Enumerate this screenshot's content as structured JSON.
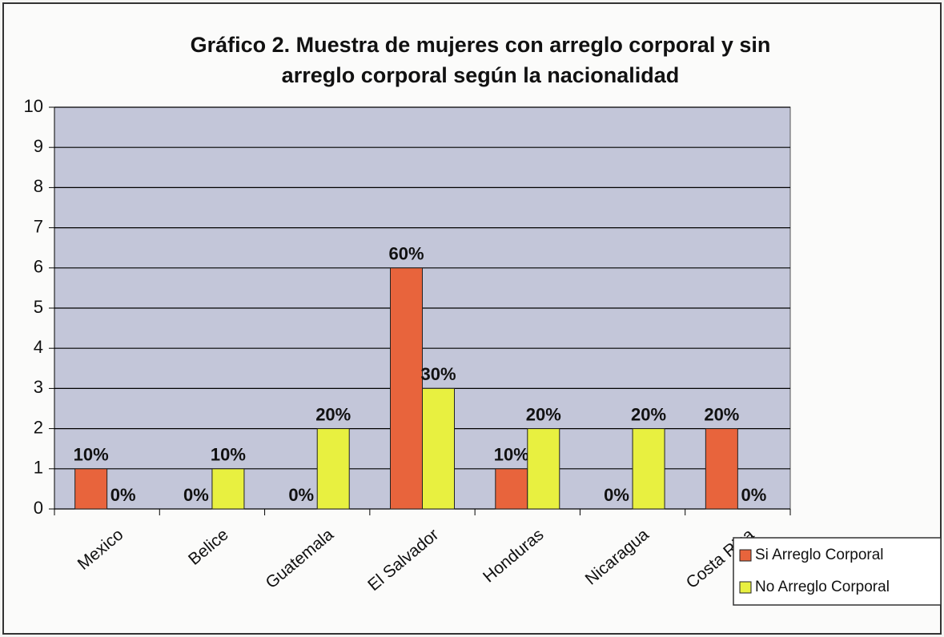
{
  "chart_data": {
    "type": "bar",
    "title": "Gráfico 2. Muestra de mujeres con arreglo corporal y sin",
    "subtitle": "arreglo corporal según la nacionalidad",
    "categories": [
      "Mexico",
      "Belice",
      "Guatemala",
      "El Salvador",
      "Honduras",
      "Nicaragua",
      "Costa Rica"
    ],
    "series": [
      {
        "name": "Si Arreglo Corporal",
        "color": "#e8643c",
        "values": [
          1,
          0,
          0,
          6,
          1,
          0,
          2
        ],
        "value_labels": [
          "10%",
          "0%",
          "0%",
          "60%",
          "10%",
          "0%",
          "20%"
        ]
      },
      {
        "name": "No Arreglo Corporal",
        "color": "#e8f040",
        "values": [
          0,
          1,
          2,
          3,
          2,
          2,
          0
        ],
        "value_labels": [
          "0%",
          "10%",
          "20%",
          "30%",
          "20%",
          "20%",
          "0%"
        ]
      }
    ],
    "ylim": [
      0,
      10
    ],
    "yticks": [
      0,
      1,
      2,
      3,
      4,
      5,
      6,
      7,
      8,
      9,
      10
    ],
    "grid": true,
    "legend": "bottom-right"
  }
}
